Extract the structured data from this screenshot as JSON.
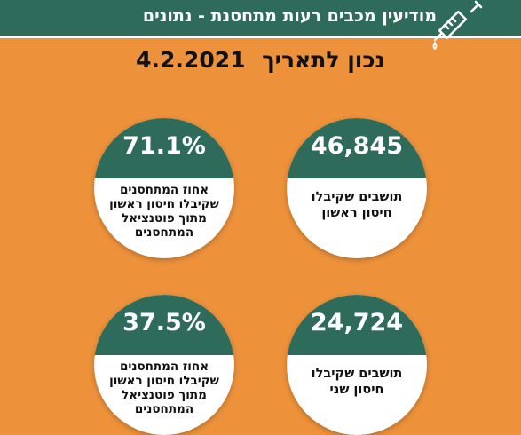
{
  "header": {
    "title": "מודיעין מכבים רעות מתחסנת - נתונים",
    "icon": "syringe-icon"
  },
  "date_line": {
    "label": "נכון לתאריך",
    "date": "4.2.2021"
  },
  "stats": [
    {
      "value": "46,845",
      "label": "תושבים שקיבלו חיסון ראשון"
    },
    {
      "value": "71.1%",
      "label": "אחוז המתחסנים שקיבלו חיסון ראשון מתוך פוטנציאל המתחסנים"
    },
    {
      "value": "24,724",
      "label": "תושבים שקיבלו חיסון שני"
    },
    {
      "value": "37.5%",
      "label": "אחוז המתחסנים שקיבלו חיסון ראשון מתוך פוטנציאל המתחסנים"
    }
  ],
  "colors": {
    "background": "#ED913A",
    "header": "#2E6B5B",
    "circle": "#FFFFFF"
  }
}
